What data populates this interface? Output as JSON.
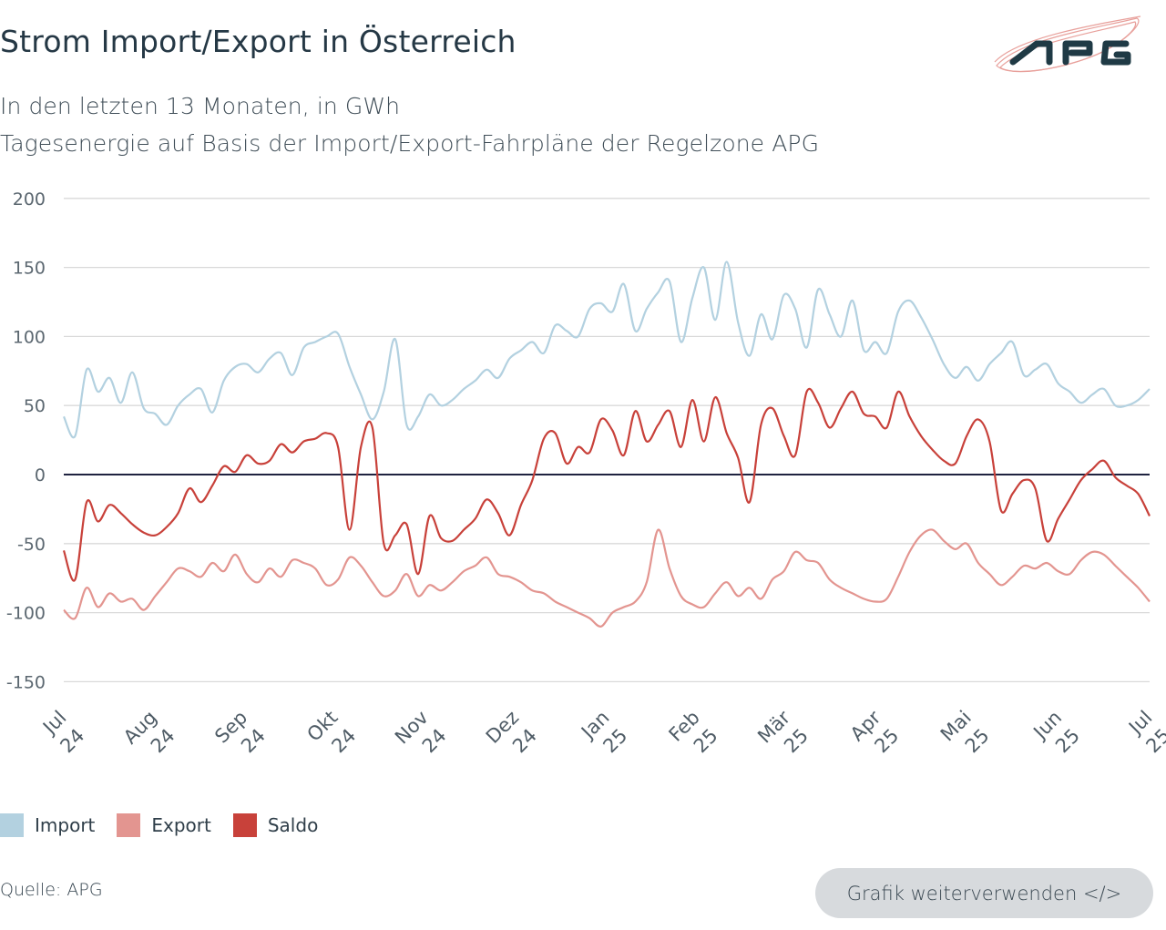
{
  "header": {
    "title": "Strom Import/Export in Österreich",
    "subtitle_1": "In den letzten 13 Monaten, in GWh",
    "subtitle_2": "Tagesenergie auf Basis der Import/Export-Fahrpläne der Regelzone APG",
    "logo_text": "APG"
  },
  "footer": {
    "source": "Quelle: APG",
    "reuse_button": "Grafik weiterverwenden </>"
  },
  "colors": {
    "import": "#b3d1e0",
    "export": "#e39590",
    "saldo": "#c8413a",
    "zero_line": "#1f2340",
    "grid": "#d9d9d9"
  },
  "chart_data": {
    "type": "line",
    "title": "Strom Import/Export in Österreich",
    "subtitle": "In den letzten 13 Monaten, in GWh",
    "xlabel": "",
    "ylabel": "GWh",
    "ylim": [
      -150,
      200
    ],
    "yticks": [
      200,
      150,
      100,
      50,
      0,
      -50,
      -100,
      -150
    ],
    "ytick_labels": [
      "200",
      "150",
      "100",
      "50",
      "0",
      "-50",
      "-100",
      "-150"
    ],
    "xticks": [
      {
        "line1": "Jul",
        "line2": "24"
      },
      {
        "line1": "Aug",
        "line2": "24"
      },
      {
        "line1": "Sep",
        "line2": "24"
      },
      {
        "line1": "Okt",
        "line2": "24"
      },
      {
        "line1": "Nov",
        "line2": "24"
      },
      {
        "line1": "Dez",
        "line2": "24"
      },
      {
        "line1": "Jan",
        "line2": "25"
      },
      {
        "line1": "Feb",
        "line2": "25"
      },
      {
        "line1": "Mär",
        "line2": "25"
      },
      {
        "line1": "Apr",
        "line2": "25"
      },
      {
        "line1": "Mai",
        "line2": "25"
      },
      {
        "line1": "Jun",
        "line2": "25"
      },
      {
        "line1": "Jul",
        "line2": "25"
      }
    ],
    "x_range_days": [
      0,
      366
    ],
    "x_step_days": 4,
    "grid": true,
    "legend_position": "bottom-left",
    "series": [
      {
        "name": "Import",
        "color": "#b3d1e0",
        "values": [
          42,
          28,
          76,
          60,
          70,
          52,
          74,
          48,
          44,
          36,
          50,
          58,
          62,
          45,
          68,
          78,
          80,
          74,
          84,
          88,
          72,
          92,
          96,
          100,
          102,
          78,
          58,
          40,
          60,
          98,
          36,
          42,
          58,
          50,
          54,
          62,
          68,
          76,
          70,
          84,
          90,
          96,
          88,
          108,
          104,
          100,
          120,
          124,
          118,
          138,
          104,
          120,
          132,
          140,
          96,
          128,
          150,
          112,
          154,
          110,
          86,
          116,
          98,
          130,
          120,
          92,
          134,
          116,
          100,
          126,
          90,
          96,
          88,
          118,
          126,
          114,
          98,
          80,
          70,
          78,
          68,
          80,
          88,
          96,
          72,
          76,
          80,
          66,
          60,
          52,
          58,
          62,
          50,
          50,
          54,
          62
        ]
      },
      {
        "name": "Export",
        "color": "#e39590",
        "values": [
          -98,
          -104,
          -82,
          -96,
          -86,
          -92,
          -90,
          -98,
          -88,
          -78,
          -68,
          -70,
          -74,
          -64,
          -70,
          -58,
          -72,
          -78,
          -68,
          -74,
          -62,
          -64,
          -68,
          -80,
          -76,
          -60,
          -66,
          -78,
          -88,
          -84,
          -72,
          -88,
          -80,
          -84,
          -78,
          -70,
          -66,
          -60,
          -72,
          -74,
          -78,
          -84,
          -86,
          -92,
          -96,
          -100,
          -104,
          -110,
          -100,
          -96,
          -92,
          -78,
          -40,
          -68,
          -88,
          -94,
          -96,
          -86,
          -78,
          -88,
          -82,
          -90,
          -76,
          -70,
          -56,
          -62,
          -64,
          -76,
          -82,
          -86,
          -90,
          -92,
          -90,
          -74,
          -56,
          -44,
          -40,
          -48,
          -54,
          -50,
          -64,
          -72,
          -80,
          -74,
          -66,
          -68,
          -64,
          -70,
          -72,
          -62,
          -56,
          -58,
          -66,
          -74,
          -82,
          -92
        ]
      },
      {
        "name": "Saldo",
        "color": "#c8413a",
        "values": [
          -55,
          -76,
          -20,
          -34,
          -22,
          -28,
          -36,
          -42,
          -44,
          -38,
          -28,
          -10,
          -20,
          -8,
          6,
          2,
          14,
          8,
          10,
          22,
          16,
          24,
          26,
          30,
          20,
          -40,
          20,
          34,
          -50,
          -44,
          -36,
          -72,
          -30,
          -46,
          -48,
          -40,
          -32,
          -18,
          -28,
          -44,
          -22,
          -4,
          26,
          30,
          8,
          20,
          16,
          40,
          32,
          14,
          46,
          24,
          36,
          46,
          20,
          54,
          24,
          56,
          30,
          12,
          -20,
          36,
          48,
          28,
          14,
          60,
          52,
          34,
          48,
          60,
          44,
          42,
          34,
          60,
          42,
          28,
          18,
          10,
          8,
          28,
          40,
          24,
          -26,
          -14,
          -4,
          -10,
          -48,
          -32,
          -18,
          -4,
          4,
          10,
          -2,
          -8,
          -14,
          -30
        ]
      }
    ]
  }
}
